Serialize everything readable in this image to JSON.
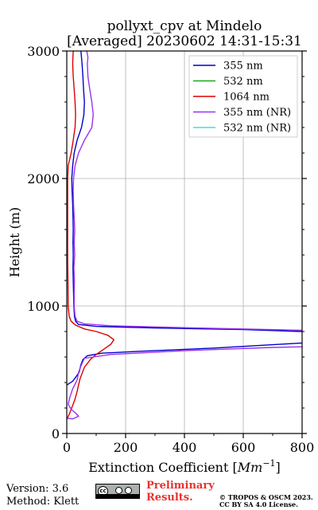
{
  "chart_data": {
    "type": "line",
    "title": "pollyxt_cpv at Mindelo",
    "subtitle": "[Averaged] 20230602 14:31-15:31",
    "xlabel": "Extinction Coefficient [Mm⁻¹]",
    "ylabel": "Height (m)",
    "xlim": [
      0,
      800
    ],
    "ylim": [
      0,
      3000
    ],
    "xticks": [
      "0",
      "200",
      "400",
      "600",
      "800"
    ],
    "yticks": [
      "0",
      "1000",
      "2000",
      "3000"
    ],
    "grid": true,
    "legend_position": "top-right",
    "series": [
      {
        "name": "355 nm",
        "color": "#0000cc",
        "points": [
          [
            0,
            380
          ],
          [
            20,
            410
          ],
          [
            30,
            440
          ],
          [
            42,
            480
          ],
          [
            48,
            540
          ],
          [
            55,
            580
          ],
          [
            70,
            610
          ],
          [
            120,
            630
          ],
          [
            250,
            645
          ],
          [
            500,
            670
          ],
          [
            800,
            710
          ]
        ],
        "points_upper": [
          [
            800,
            800
          ],
          [
            600,
            815
          ],
          [
            300,
            828
          ],
          [
            100,
            840
          ],
          [
            40,
            855
          ],
          [
            30,
            880
          ],
          [
            26,
            920
          ],
          [
            24,
            1000
          ],
          [
            23,
            1100
          ],
          [
            22,
            1200
          ],
          [
            21,
            1300
          ],
          [
            22,
            1400
          ],
          [
            21,
            1500
          ],
          [
            22,
            1600
          ],
          [
            21,
            1700
          ],
          [
            20,
            1800
          ],
          [
            18,
            1900
          ],
          [
            17,
            2000
          ],
          [
            20,
            2100
          ],
          [
            25,
            2200
          ],
          [
            35,
            2300
          ],
          [
            50,
            2400
          ],
          [
            58,
            2500
          ],
          [
            60,
            2600
          ],
          [
            57,
            2700
          ],
          [
            55,
            2800
          ],
          [
            52,
            2900
          ],
          [
            48,
            3000
          ]
        ]
      },
      {
        "name": "532 nm",
        "color": "#1aaa1a",
        "points": []
      },
      {
        "name": "1064 nm",
        "color": "#dd0000",
        "points": [
          [
            0,
            110
          ],
          [
            10,
            160
          ],
          [
            20,
            220
          ],
          [
            28,
            270
          ],
          [
            35,
            330
          ],
          [
            40,
            380
          ],
          [
            45,
            430
          ],
          [
            60,
            520
          ],
          [
            80,
            580
          ],
          [
            100,
            620
          ],
          [
            125,
            660
          ],
          [
            150,
            700
          ],
          [
            160,
            735
          ],
          [
            140,
            770
          ],
          [
            100,
            800
          ],
          [
            60,
            820
          ],
          [
            30,
            850
          ],
          [
            15,
            880
          ],
          [
            8,
            920
          ],
          [
            5,
            1000
          ],
          [
            4,
            1200
          ],
          [
            3,
            1400
          ],
          [
            3,
            1600
          ],
          [
            3,
            1800
          ],
          [
            3,
            2000
          ],
          [
            5,
            2100
          ],
          [
            15,
            2200
          ],
          [
            22,
            2300
          ],
          [
            28,
            2400
          ],
          [
            30,
            2500
          ],
          [
            28,
            2600
          ],
          [
            25,
            2700
          ],
          [
            22,
            2800
          ],
          [
            20,
            2900
          ],
          [
            22,
            3000
          ]
        ]
      },
      {
        "name": "355 nm (NR)",
        "color": "#9933ee",
        "points": [
          [
            0,
            120
          ],
          [
            20,
            115
          ],
          [
            40,
            135
          ],
          [
            30,
            160
          ],
          [
            15,
            190
          ],
          [
            5,
            230
          ],
          [
            10,
            280
          ],
          [
            20,
            350
          ],
          [
            35,
            420
          ],
          [
            40,
            480
          ],
          [
            50,
            540
          ],
          [
            60,
            590
          ],
          [
            150,
            620
          ],
          [
            400,
            650
          ],
          [
            700,
            675
          ],
          [
            800,
            680
          ]
        ],
        "points_upper": [
          [
            800,
            810
          ],
          [
            400,
            830
          ],
          [
            150,
            845
          ],
          [
            60,
            860
          ],
          [
            35,
            880
          ],
          [
            28,
            920
          ],
          [
            25,
            1000
          ],
          [
            25,
            1100
          ],
          [
            26,
            1200
          ],
          [
            24,
            1300
          ],
          [
            27,
            1400
          ],
          [
            25,
            1500
          ],
          [
            27,
            1600
          ],
          [
            25,
            1700
          ],
          [
            23,
            1800
          ],
          [
            22,
            1900
          ],
          [
            23,
            2000
          ],
          [
            28,
            2100
          ],
          [
            40,
            2200
          ],
          [
            60,
            2300
          ],
          [
            85,
            2400
          ],
          [
            90,
            2500
          ],
          [
            85,
            2600
          ],
          [
            78,
            2700
          ],
          [
            72,
            2800
          ],
          [
            70,
            2900
          ],
          [
            72,
            2950
          ],
          [
            68,
            3000
          ]
        ]
      },
      {
        "name": "532 nm (NR)",
        "color": "#40e0d0",
        "points": []
      }
    ]
  },
  "footer": {
    "version": "Version: 3.6",
    "method": "Method: Klett",
    "preliminary": "Preliminary Results.",
    "copyright_line1": "© TROPOS & OSCM 2023.",
    "copyright_line2": "CC BY SA 4.0 License.",
    "license_badge": "cc by sa"
  }
}
